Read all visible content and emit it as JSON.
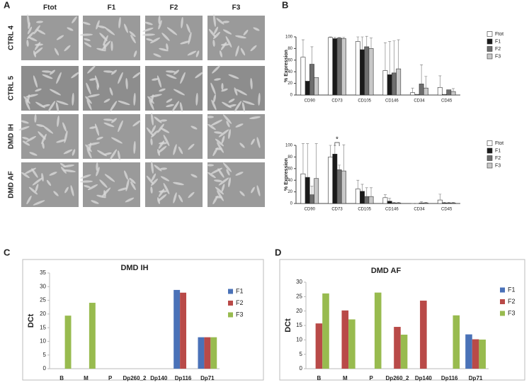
{
  "figure": {
    "panels": [
      "A",
      "B",
      "C",
      "D"
    ],
    "columns": [
      "Ftot",
      "F1",
      "F2",
      "F3"
    ],
    "rows": [
      "CTRL 4",
      "CTRL 5",
      "DMD IH",
      "DMD AF"
    ]
  },
  "chart_data": [
    {
      "type": "bar",
      "ylabel": "% Expression",
      "categories": [
        "CD90",
        "CD73",
        "CD105",
        "CD146",
        "CD34",
        "CD45"
      ],
      "series": [
        {
          "name": "Ftot",
          "color": "#ffffff",
          "values": [
            65,
            99,
            92,
            42,
            4,
            13
          ],
          "errors": [
            30,
            1,
            8,
            48,
            8,
            20
          ]
        },
        {
          "name": "F1",
          "color": "#1a1a1a",
          "values": [
            24,
            97,
            78,
            35,
            1,
            1
          ],
          "errors": [
            0,
            2,
            22,
            57,
            0,
            0
          ]
        },
        {
          "name": "F2",
          "color": "#6e6e6e",
          "values": [
            53,
            98,
            83,
            38,
            19,
            9
          ],
          "errors": [
            30,
            1,
            18,
            55,
            33,
            0
          ]
        },
        {
          "name": "F3",
          "color": "#c8c8c8",
          "values": [
            30,
            97,
            80,
            45,
            12,
            6
          ],
          "errors": [
            0,
            2,
            18,
            50,
            20,
            5
          ]
        }
      ],
      "ylim": [
        0,
        100
      ],
      "yticks": [
        0,
        20,
        40,
        60,
        80,
        100
      ],
      "edge_color": "#333333",
      "legend": "right"
    },
    {
      "type": "bar",
      "ylabel": "% Expression",
      "categories": [
        "CD90",
        "CD73",
        "CD105",
        "CD146",
        "CD34",
        "CD45"
      ],
      "series": [
        {
          "name": "Ftot",
          "color": "#ffffff",
          "values": [
            51,
            80,
            25,
            10,
            0,
            6
          ],
          "errors": [
            52,
            20,
            15,
            5,
            0,
            10
          ]
        },
        {
          "name": "F1",
          "color": "#1a1a1a",
          "values": [
            45,
            85,
            21,
            4,
            0,
            1
          ],
          "errors": [
            58,
            15,
            12,
            5,
            0,
            1
          ]
        },
        {
          "name": "F2",
          "color": "#6e6e6e",
          "values": [
            15,
            58,
            12,
            1,
            1,
            1
          ],
          "errors": [
            15,
            8,
            15,
            1,
            2,
            1
          ]
        },
        {
          "name": "F3",
          "color": "#c8c8c8",
          "values": [
            43,
            56,
            12,
            1,
            1,
            1
          ],
          "errors": [
            60,
            45,
            15,
            1,
            1,
            1
          ]
        }
      ],
      "ylim": [
        0,
        100
      ],
      "yticks": [
        0,
        20,
        40,
        60,
        80,
        100
      ],
      "edge_color": "#333333",
      "legend": "right",
      "annotation": "*"
    },
    {
      "type": "bar",
      "title": "DMD IH",
      "ylabel": "DCt",
      "categories": [
        "B",
        "M",
        "P",
        "Dp260_2",
        "Dp140",
        "Dp116",
        "Dp71"
      ],
      "series": [
        {
          "name": "F1",
          "color": "#4a72b8",
          "values": [
            null,
            null,
            null,
            null,
            null,
            28.8,
            11.5
          ]
        },
        {
          "name": "F2",
          "color": "#b94a48",
          "values": [
            null,
            null,
            null,
            null,
            null,
            27.8,
            11.5
          ]
        },
        {
          "name": "F3",
          "color": "#98bb4f",
          "values": [
            19.4,
            24.1,
            null,
            null,
            null,
            null,
            11.5
          ]
        }
      ],
      "ylim": [
        0,
        35
      ],
      "yticks": [
        0,
        5,
        10,
        15,
        20,
        25,
        30,
        35
      ],
      "legend": "right"
    },
    {
      "type": "bar",
      "title": "DMD AF",
      "ylabel": "DCt",
      "categories": [
        "B",
        "M",
        "P",
        "Dp260_2",
        "Dp140",
        "Dp116",
        "Dp71"
      ],
      "series": [
        {
          "name": "F1",
          "color": "#4a72b8",
          "values": [
            null,
            null,
            null,
            null,
            null,
            null,
            11.9
          ]
        },
        {
          "name": "F2",
          "color": "#b94a48",
          "values": [
            15.7,
            20.2,
            null,
            14.5,
            23.6,
            null,
            10.2
          ]
        },
        {
          "name": "F3",
          "color": "#98bb4f",
          "values": [
            26.1,
            17.1,
            26.4,
            11.8,
            null,
            18.5,
            10.1
          ]
        }
      ],
      "ylim": [
        0,
        30
      ],
      "yticks": [
        0,
        5,
        10,
        15,
        20,
        25,
        30
      ],
      "legend": "right"
    }
  ]
}
